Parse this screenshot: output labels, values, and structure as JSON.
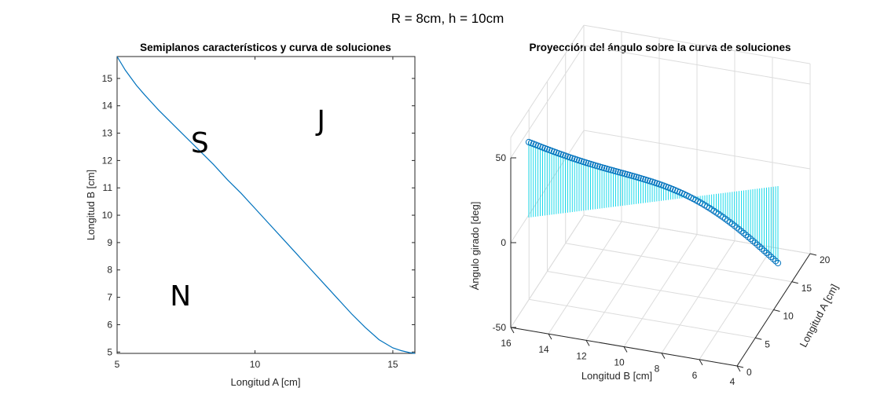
{
  "figure": {
    "title": "R = 8cm, h = 10cm"
  },
  "chart_data": [
    {
      "type": "line",
      "title": "Semiplanos característicos y curva de soluciones",
      "xlabel": "Longitud A [cm]",
      "ylabel": "Longitud B [cm]",
      "xlim": [
        5,
        15.8
      ],
      "ylim": [
        4.95,
        15.8
      ],
      "xticks": [
        "5",
        "10",
        "15"
      ],
      "yticks": [
        "5",
        "6",
        "7",
        "8",
        "9",
        "10",
        "11",
        "12",
        "13",
        "14",
        "15"
      ],
      "grid": false,
      "line_color": "#0072BD",
      "series": [
        {
          "x": [
            5,
            5.3,
            5.7,
            6,
            6.5,
            7,
            7.5,
            8,
            8.5,
            9,
            9.5,
            10,
            10.5,
            11,
            11.5,
            12,
            12.5,
            13,
            13.5,
            14,
            14.5,
            15,
            15.3,
            15.6,
            15.8
          ],
          "y": [
            15.8,
            15.3,
            14.75,
            14.4,
            13.85,
            13.35,
            12.85,
            12.35,
            11.85,
            11.3,
            10.8,
            10.25,
            9.7,
            9.15,
            8.6,
            8.05,
            7.5,
            6.95,
            6.4,
            5.9,
            5.45,
            5.15,
            5.05,
            4.98,
            4.95
          ]
        }
      ],
      "annotations": [
        {
          "text": "S",
          "x": 8,
          "y": 12.3
        },
        {
          "text": "J",
          "x": 12.4,
          "y": 13.1
        },
        {
          "text": "N",
          "x": 7.3,
          "y": 6.7
        }
      ]
    },
    {
      "type": "scatter",
      "title": "Proyección del ángulo sobre la curva de soluciones",
      "xlabel": "Longitud B [cm]",
      "ylabel": "Ángulo girado [deg]",
      "zlabel": "Longitud A [cm]",
      "xticks": [
        "16",
        "14",
        "12",
        "10",
        "8",
        "6",
        "4"
      ],
      "yticks": [
        "0",
        "5",
        "10",
        "15",
        "20"
      ],
      "zticks": [
        "-50",
        "0",
        "50"
      ],
      "grid": true,
      "marker_color": "#0072BD",
      "stem_color": "#00D5E8",
      "n_points": 110,
      "angle_range": [
        58,
        -12
      ],
      "b_range": [
        15.8,
        4.95
      ]
    }
  ]
}
